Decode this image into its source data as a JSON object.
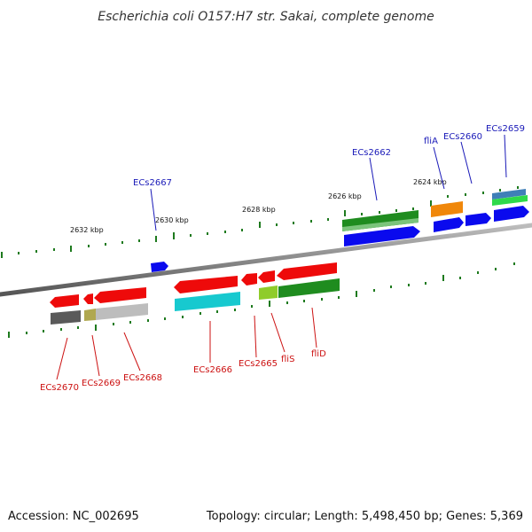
{
  "title": "Escherichia coli O157:H7 str. Sakai, complete genome",
  "footer": {
    "accession": "Accession: NC_002695",
    "summary": "Topology: circular; Length: 5,498,450 bp; Genes: 5,369"
  },
  "colors": {
    "backbone": "#8a8a8a",
    "tick": "#1e7a1e",
    "top_label": "#1a1ab8",
    "bottom_label": "#cc1111"
  },
  "scale_labels": [
    {
      "id": "tick-2632",
      "text": "2632 kbp"
    },
    {
      "id": "tick-2630",
      "text": "2630 kbp"
    },
    {
      "id": "tick-2628",
      "text": "2628 kbp"
    },
    {
      "id": "tick-2626",
      "text": "2626 kbp"
    },
    {
      "id": "tick-2624",
      "text": "2624 kbp"
    }
  ],
  "top_genes": [
    {
      "id": "ecs2667",
      "text": "ECs2667",
      "color": "#1a1ab8"
    },
    {
      "id": "ecs2662",
      "text": "ECs2662",
      "color": "#1a1ab8"
    },
    {
      "id": "flia",
      "text": "fliA",
      "color": "#1a1ab8"
    },
    {
      "id": "ecs2660",
      "text": "ECs2660",
      "color": "#1a1ab8"
    },
    {
      "id": "ecs2659",
      "text": "ECs2659",
      "color": "#1a1ab8"
    }
  ],
  "bottom_genes": [
    {
      "id": "ecs2670",
      "text": "ECs2670",
      "color": "#cc1111"
    },
    {
      "id": "ecs2669",
      "text": "ECs2669",
      "color": "#cc1111"
    },
    {
      "id": "ecs2668",
      "text": "ECs2668",
      "color": "#cc1111"
    },
    {
      "id": "ecs2666",
      "text": "ECs2666",
      "color": "#cc1111"
    },
    {
      "id": "ecs2665",
      "text": "ECs2665",
      "color": "#cc1111"
    },
    {
      "id": "flis",
      "text": "fliS",
      "color": "#cc1111"
    },
    {
      "id": "flid",
      "text": "fliD",
      "color": "#cc1111"
    }
  ]
}
